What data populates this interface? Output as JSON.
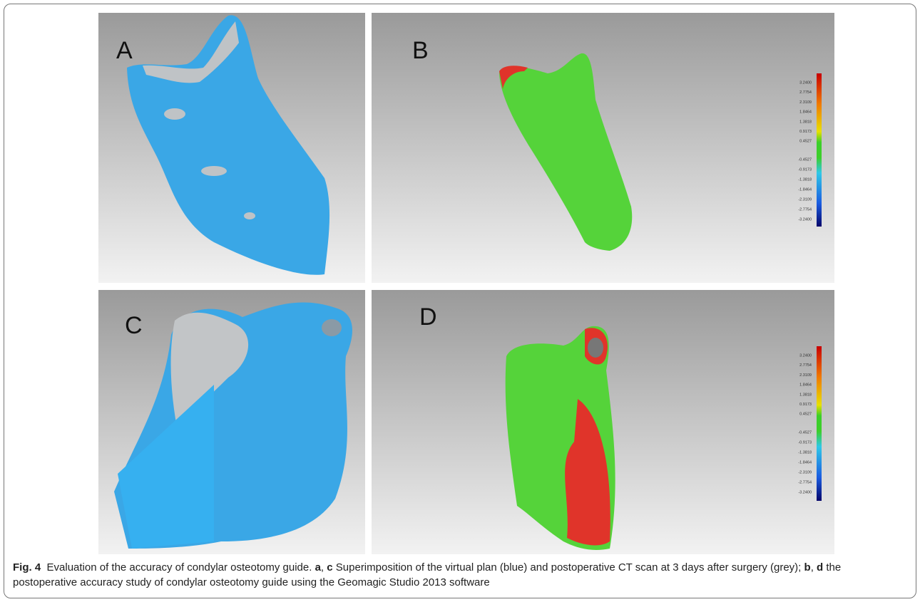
{
  "figure": {
    "panels": [
      {
        "label": "A"
      },
      {
        "label": "B"
      },
      {
        "label": "C"
      },
      {
        "label": "D"
      }
    ],
    "color_scale": {
      "labels": [
        "3.2400",
        "2.7754",
        "2.3109",
        "1.8464",
        "1.3818",
        "0.9173",
        "0.4527",
        "-0.4527",
        "-0.9173",
        "-1.3818",
        "-1.8464",
        "-2.3109",
        "-2.7754",
        "-3.2400"
      ]
    },
    "caption": {
      "figure_label": "Fig. 4",
      "title": "Evaluation of the accuracy of condylar osteotomy guide.",
      "ref_a": "a",
      "sep_1": ",",
      "ref_c": "c",
      "text_1": "Superimposition of the virtual plan (blue) and postoperative CT scan at 3 days after surgery (grey);",
      "ref_b": "b",
      "sep_2": ",",
      "ref_d": "d",
      "text_2": "the postoperative accuracy study of condylar osteotomy guide using the Geomagic Studio 2013 software"
    }
  }
}
